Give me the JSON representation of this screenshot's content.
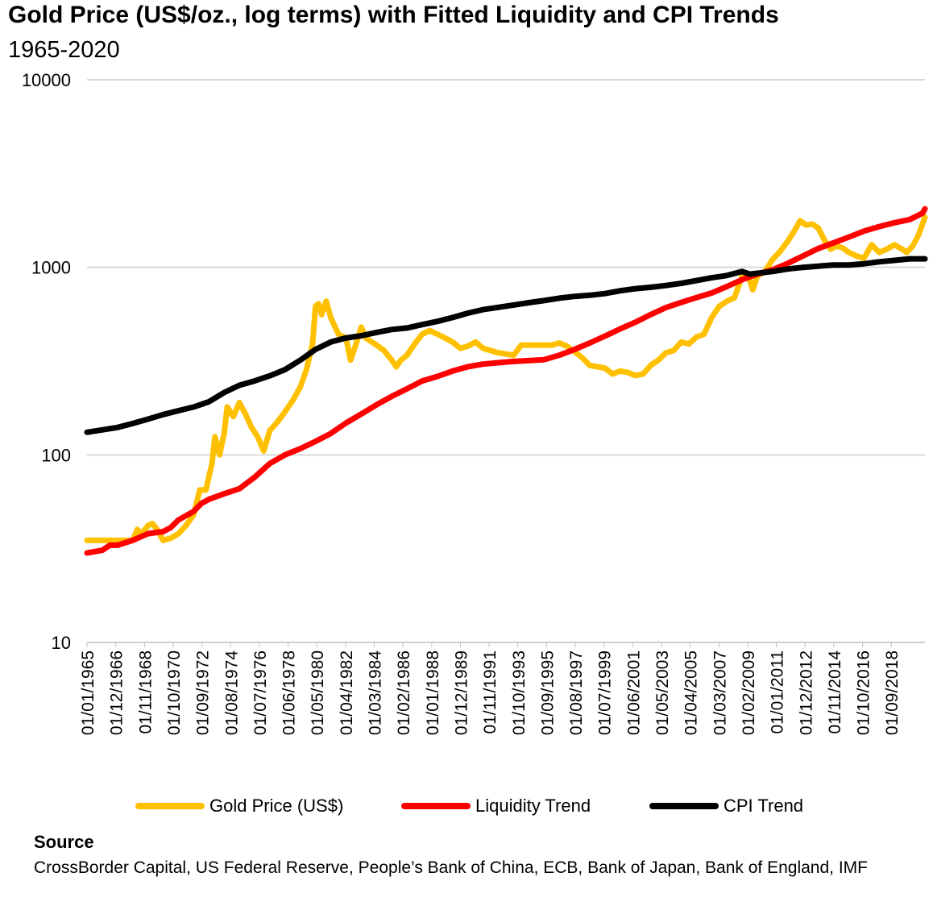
{
  "chart_data": {
    "type": "line",
    "title": "Gold Price (US$/oz., log terms) with Fitted Liquidity and CPI Trends",
    "subtitle": "1965-2020",
    "y_scale": "log",
    "ylim": [
      10,
      10000
    ],
    "y_ticks": [
      "10000",
      "1000",
      "100",
      "10"
    ],
    "y_tick_values": [
      10000,
      1000,
      100,
      10
    ],
    "xlim": [
      1965.0,
      2020.0
    ],
    "x_tick_labels": [
      "01/01/1965",
      "01/12/1966",
      "01/11/1968",
      "01/10/1970",
      "01/09/1972",
      "01/08/1974",
      "01/07/1976",
      "01/06/1978",
      "01/05/1980",
      "01/04/1982",
      "01/03/1984",
      "01/02/1986",
      "01/01/1988",
      "01/12/1989",
      "01/11/1991",
      "01/10/1993",
      "01/09/1995",
      "01/08/1997",
      "01/07/1999",
      "01/06/2001",
      "01/05/2003",
      "01/04/2005",
      "01/03/2007",
      "01/02/2009",
      "01/01/2011",
      "01/12/2012",
      "01/11/2014",
      "01/10/2016",
      "01/09/2018"
    ],
    "grid": "horizontal",
    "legend_position": "bottom",
    "series": [
      {
        "name": "Gold Price (US$)",
        "color": "#FFC000",
        "points": [
          [
            1965.0,
            35
          ],
          [
            1968.0,
            35
          ],
          [
            1968.3,
            40
          ],
          [
            1968.6,
            38
          ],
          [
            1969.0,
            42
          ],
          [
            1969.3,
            43
          ],
          [
            1969.6,
            40
          ],
          [
            1970.0,
            35
          ],
          [
            1970.5,
            36
          ],
          [
            1971.0,
            38
          ],
          [
            1971.5,
            42
          ],
          [
            1972.0,
            48
          ],
          [
            1972.4,
            65
          ],
          [
            1972.8,
            65
          ],
          [
            1973.2,
            90
          ],
          [
            1973.4,
            125
          ],
          [
            1973.7,
            100
          ],
          [
            1974.0,
            130
          ],
          [
            1974.2,
            180
          ],
          [
            1974.6,
            160
          ],
          [
            1975.0,
            190
          ],
          [
            1975.4,
            165
          ],
          [
            1975.8,
            140
          ],
          [
            1976.2,
            125
          ],
          [
            1976.6,
            105
          ],
          [
            1977.0,
            135
          ],
          [
            1977.5,
            150
          ],
          [
            1978.0,
            170
          ],
          [
            1978.5,
            195
          ],
          [
            1979.0,
            230
          ],
          [
            1979.4,
            285
          ],
          [
            1979.8,
            390
          ],
          [
            1980.0,
            620
          ],
          [
            1980.2,
            640
          ],
          [
            1980.4,
            560
          ],
          [
            1980.7,
            660
          ],
          [
            1981.0,
            540
          ],
          [
            1981.5,
            440
          ],
          [
            1982.0,
            420
          ],
          [
            1982.3,
            320
          ],
          [
            1982.7,
            400
          ],
          [
            1983.0,
            480
          ],
          [
            1983.3,
            420
          ],
          [
            1983.7,
            400
          ],
          [
            1984.0,
            385
          ],
          [
            1984.5,
            360
          ],
          [
            1985.0,
            320
          ],
          [
            1985.3,
            295
          ],
          [
            1985.6,
            320
          ],
          [
            1986.0,
            340
          ],
          [
            1986.5,
            390
          ],
          [
            1987.0,
            440
          ],
          [
            1987.5,
            460
          ],
          [
            1988.0,
            440
          ],
          [
            1988.5,
            420
          ],
          [
            1989.0,
            400
          ],
          [
            1989.5,
            370
          ],
          [
            1990.0,
            380
          ],
          [
            1990.5,
            400
          ],
          [
            1991.0,
            370
          ],
          [
            1991.5,
            360
          ],
          [
            1992.0,
            350
          ],
          [
            1992.5,
            345
          ],
          [
            1993.0,
            340
          ],
          [
            1993.5,
            385
          ],
          [
            1994.0,
            385
          ],
          [
            1994.5,
            385
          ],
          [
            1995.0,
            385
          ],
          [
            1995.5,
            385
          ],
          [
            1996.0,
            395
          ],
          [
            1996.5,
            380
          ],
          [
            1997.0,
            355
          ],
          [
            1997.5,
            330
          ],
          [
            1998.0,
            300
          ],
          [
            1998.5,
            295
          ],
          [
            1999.0,
            290
          ],
          [
            1999.5,
            270
          ],
          [
            2000.0,
            280
          ],
          [
            2000.5,
            275
          ],
          [
            2001.0,
            265
          ],
          [
            2001.5,
            270
          ],
          [
            2002.0,
            300
          ],
          [
            2002.5,
            320
          ],
          [
            2003.0,
            350
          ],
          [
            2003.5,
            360
          ],
          [
            2004.0,
            400
          ],
          [
            2004.5,
            390
          ],
          [
            2005.0,
            425
          ],
          [
            2005.5,
            440
          ],
          [
            2006.0,
            540
          ],
          [
            2006.5,
            620
          ],
          [
            2007.0,
            660
          ],
          [
            2007.5,
            690
          ],
          [
            2008.0,
            900
          ],
          [
            2008.4,
            900
          ],
          [
            2008.7,
            760
          ],
          [
            2009.0,
            900
          ],
          [
            2009.5,
            950
          ],
          [
            2010.0,
            1100
          ],
          [
            2010.5,
            1220
          ],
          [
            2011.0,
            1380
          ],
          [
            2011.5,
            1600
          ],
          [
            2011.8,
            1770
          ],
          [
            2012.2,
            1680
          ],
          [
            2012.6,
            1700
          ],
          [
            2013.0,
            1620
          ],
          [
            2013.4,
            1400
          ],
          [
            2013.8,
            1250
          ],
          [
            2014.2,
            1300
          ],
          [
            2014.6,
            1270
          ],
          [
            2015.0,
            1200
          ],
          [
            2015.5,
            1150
          ],
          [
            2016.0,
            1120
          ],
          [
            2016.5,
            1320
          ],
          [
            2017.0,
            1200
          ],
          [
            2017.5,
            1250
          ],
          [
            2018.0,
            1320
          ],
          [
            2018.5,
            1250
          ],
          [
            2018.8,
            1200
          ],
          [
            2019.2,
            1300
          ],
          [
            2019.6,
            1500
          ],
          [
            2020.0,
            1850
          ]
        ]
      },
      {
        "name": "Liquidity Trend",
        "color": "#FF0000",
        "points": [
          [
            1965.0,
            30
          ],
          [
            1966.0,
            31
          ],
          [
            1966.5,
            33
          ],
          [
            1967.0,
            33
          ],
          [
            1968.0,
            35
          ],
          [
            1969.0,
            38
          ],
          [
            1970.0,
            39
          ],
          [
            1970.5,
            41
          ],
          [
            1971.0,
            45
          ],
          [
            1972.0,
            50
          ],
          [
            1972.5,
            55
          ],
          [
            1973.0,
            58
          ],
          [
            1974.0,
            62
          ],
          [
            1975.0,
            66
          ],
          [
            1976.0,
            76
          ],
          [
            1977.0,
            90
          ],
          [
            1978.0,
            100
          ],
          [
            1979.0,
            108
          ],
          [
            1980.0,
            118
          ],
          [
            1981.0,
            130
          ],
          [
            1982.0,
            148
          ],
          [
            1983.0,
            165
          ],
          [
            1984.0,
            185
          ],
          [
            1985.0,
            205
          ],
          [
            1986.0,
            225
          ],
          [
            1987.0,
            248
          ],
          [
            1988.0,
            262
          ],
          [
            1989.0,
            280
          ],
          [
            1990.0,
            295
          ],
          [
            1991.0,
            305
          ],
          [
            1992.0,
            310
          ],
          [
            1993.0,
            315
          ],
          [
            1994.0,
            318
          ],
          [
            1995.0,
            322
          ],
          [
            1996.0,
            340
          ],
          [
            1997.0,
            365
          ],
          [
            1998.0,
            395
          ],
          [
            1999.0,
            430
          ],
          [
            2000.0,
            470
          ],
          [
            2001.0,
            510
          ],
          [
            2002.0,
            560
          ],
          [
            2003.0,
            610
          ],
          [
            2004.0,
            650
          ],
          [
            2005.0,
            690
          ],
          [
            2006.0,
            730
          ],
          [
            2007.0,
            790
          ],
          [
            2008.0,
            860
          ],
          [
            2009.0,
            920
          ],
          [
            2010.0,
            970
          ],
          [
            2011.0,
            1050
          ],
          [
            2012.0,
            1150
          ],
          [
            2013.0,
            1260
          ],
          [
            2014.0,
            1350
          ],
          [
            2015.0,
            1450
          ],
          [
            2016.0,
            1560
          ],
          [
            2017.0,
            1650
          ],
          [
            2018.0,
            1730
          ],
          [
            2019.0,
            1800
          ],
          [
            2019.6,
            1900
          ],
          [
            2019.85,
            1950
          ],
          [
            2020.0,
            2050
          ]
        ]
      },
      {
        "name": "CPI Trend",
        "color": "#000000",
        "points": [
          [
            1965.0,
            132
          ],
          [
            1966.0,
            136
          ],
          [
            1967.0,
            140
          ],
          [
            1968.0,
            147
          ],
          [
            1969.0,
            155
          ],
          [
            1970.0,
            164
          ],
          [
            1971.0,
            172
          ],
          [
            1972.0,
            180
          ],
          [
            1973.0,
            192
          ],
          [
            1974.0,
            215
          ],
          [
            1975.0,
            235
          ],
          [
            1976.0,
            248
          ],
          [
            1977.0,
            264
          ],
          [
            1978.0,
            285
          ],
          [
            1979.0,
            320
          ],
          [
            1980.0,
            365
          ],
          [
            1981.0,
            400
          ],
          [
            1982.0,
            420
          ],
          [
            1983.0,
            432
          ],
          [
            1984.0,
            450
          ],
          [
            1985.0,
            466
          ],
          [
            1986.0,
            475
          ],
          [
            1987.0,
            495
          ],
          [
            1988.0,
            515
          ],
          [
            1989.0,
            540
          ],
          [
            1990.0,
            570
          ],
          [
            1991.0,
            595
          ],
          [
            1992.0,
            612
          ],
          [
            1993.0,
            630
          ],
          [
            1994.0,
            648
          ],
          [
            1995.0,
            665
          ],
          [
            1996.0,
            685
          ],
          [
            1997.0,
            700
          ],
          [
            1998.0,
            710
          ],
          [
            1999.0,
            725
          ],
          [
            2000.0,
            750
          ],
          [
            2001.0,
            770
          ],
          [
            2002.0,
            783
          ],
          [
            2003.0,
            800
          ],
          [
            2004.0,
            822
          ],
          [
            2005.0,
            850
          ],
          [
            2006.0,
            880
          ],
          [
            2007.0,
            905
          ],
          [
            2008.0,
            950
          ],
          [
            2008.5,
            920
          ],
          [
            2009.0,
            930
          ],
          [
            2010.0,
            950
          ],
          [
            2011.0,
            980
          ],
          [
            2012.0,
            1000
          ],
          [
            2013.0,
            1015
          ],
          [
            2014.0,
            1030
          ],
          [
            2015.0,
            1030
          ],
          [
            2016.0,
            1045
          ],
          [
            2017.0,
            1070
          ],
          [
            2018.0,
            1090
          ],
          [
            2019.0,
            1110
          ],
          [
            2020.0,
            1110
          ]
        ]
      }
    ],
    "source_heading": "Source",
    "source_text": "CrossBorder Capital, US Federal Reserve, People’s Bank of China, ECB, Bank of Japan, Bank of England, IMF"
  }
}
